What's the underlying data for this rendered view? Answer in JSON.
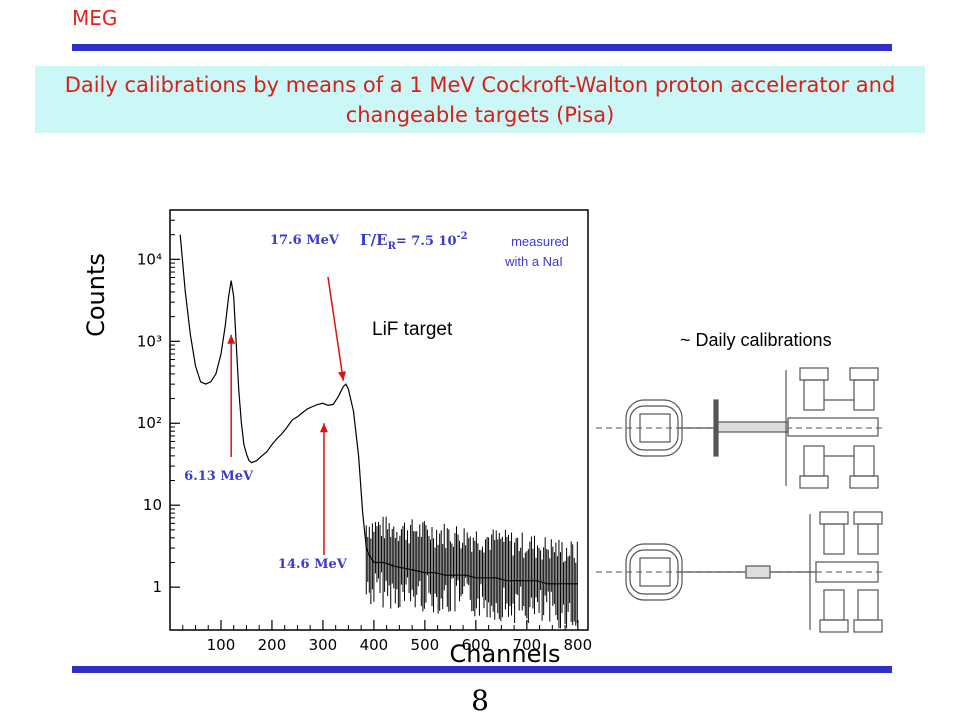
{
  "header": {
    "logo_text": "MEG",
    "title": "Daily calibrations by means of a 1 MeV Cockroft-Walton proton accelerator and changeable targets (Pisa)",
    "page_number": "8"
  },
  "colors": {
    "header_text": "#e8221c",
    "bar": "#2f2fc8",
    "title_background": "#ccf7f7",
    "arrow": "#e01010",
    "annotation_blue": "#3a3ad0"
  },
  "side_label": "~ Daily calibrations",
  "chart_data": {
    "type": "line",
    "xlabel": "Channels",
    "ylabel": "Counts",
    "x_ticks": [
      "100",
      "200",
      "300",
      "400",
      "500",
      "600",
      "700",
      "800"
    ],
    "y_ticks": [
      "1",
      "10",
      "10²",
      "10³",
      "10⁴"
    ],
    "y_scale": "log",
    "xlim": [
      0,
      820
    ],
    "ylim": [
      0.3,
      40000
    ],
    "target_label": "LiF target",
    "resolution": {
      "energy": "17.6 MeV",
      "formula": "Γ/E",
      "subscript": "R",
      "value": "= 7.5 10",
      "exponent": "-2",
      "note_line1": "measured",
      "note_line2": "with a NaI"
    },
    "peaks": [
      {
        "label": "6.13 MeV",
        "channel": 120
      },
      {
        "label": "14.6 MeV",
        "channel": 300
      },
      {
        "label": "17.6 MeV",
        "channel": 345
      }
    ],
    "series": [
      {
        "x": [
          20,
          30,
          40,
          50,
          60,
          70,
          80,
          90,
          100,
          108,
          115,
          120,
          125,
          130,
          135,
          140,
          145,
          150,
          155,
          160,
          170,
          180,
          190,
          200,
          210,
          220,
          230,
          240,
          250,
          260,
          270,
          280,
          290,
          300,
          310,
          320,
          330,
          340,
          345,
          350,
          360,
          370,
          378,
          385,
          390,
          400,
          420,
          440,
          460,
          480,
          500,
          520,
          540,
          560,
          580,
          600,
          620,
          640,
          660,
          680,
          700,
          720,
          740,
          760,
          780,
          800
        ],
        "values": [
          20000,
          4000,
          1200,
          500,
          320,
          300,
          320,
          400,
          700,
          1500,
          3500,
          5500,
          3500,
          900,
          250,
          100,
          55,
          42,
          35,
          33,
          35,
          40,
          45,
          55,
          65,
          75,
          90,
          110,
          120,
          135,
          150,
          160,
          170,
          175,
          165,
          170,
          210,
          280,
          300,
          260,
          140,
          40,
          8,
          3,
          2.5,
          2,
          2,
          1.8,
          1.7,
          1.6,
          1.5,
          1.5,
          1.4,
          1.4,
          1.4,
          1.3,
          1.3,
          1.3,
          1.2,
          1.2,
          1.2,
          1.2,
          1.1,
          1.1,
          1.1,
          1.1
        ]
      }
    ]
  }
}
